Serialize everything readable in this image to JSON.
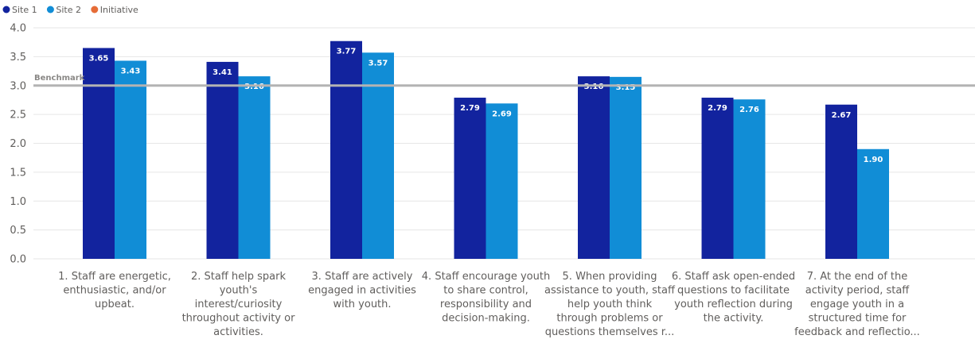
{
  "chart_data": {
    "type": "bar",
    "legend": [
      {
        "name": "Site 1",
        "color": "#12239e"
      },
      {
        "name": "Site 2",
        "color": "#118dd6"
      },
      {
        "name": "Initiative",
        "color": "#e66c37"
      }
    ],
    "legend_position": "top-left",
    "categories": [
      [
        "1. Staff are energetic,",
        "enthusiastic, and/or",
        "upbeat."
      ],
      [
        "2. Staff help spark",
        "youth's",
        "interest/curiosity",
        "throughout activity or",
        "activities."
      ],
      [
        "3. Staff are actively",
        "engaged in activities",
        "with youth."
      ],
      [
        "4. Staff encourage youth",
        "to share control,",
        "responsibility and",
        "decision-making."
      ],
      [
        "5. When providing",
        "assistance to youth, staff",
        "help youth think",
        "through problems or",
        "questions themselves r..."
      ],
      [
        "6. Staff ask open-ended",
        "questions to facilitate",
        "youth reflection during",
        "the activity."
      ],
      [
        "7. At the end of the",
        "activity period, staff",
        "engage youth in a",
        "structured time for",
        "feedback and reflectio..."
      ]
    ],
    "series": [
      {
        "name": "Site 1",
        "color": "#12239e",
        "values": [
          3.65,
          3.41,
          3.77,
          2.79,
          3.16,
          2.79,
          2.67
        ],
        "labels": [
          "3.65",
          "3.41",
          "3.77",
          "2.79",
          "3.16",
          "2.79",
          "2.67"
        ]
      },
      {
        "name": "Site 2",
        "color": "#118dd6",
        "values": [
          3.43,
          3.16,
          3.57,
          2.69,
          3.15,
          2.76,
          1.9
        ],
        "labels": [
          "3.43",
          "3.16",
          "3.57",
          "2.69",
          "3.15",
          "2.76",
          "1.90"
        ]
      }
    ],
    "benchmark": {
      "label": "Benchmark",
      "value": 3.0
    },
    "ylim": [
      0,
      4
    ],
    "yticks": [
      "0.0",
      "0.5",
      "1.0",
      "1.5",
      "2.0",
      "2.5",
      "3.0",
      "3.5",
      "4.0"
    ],
    "grid": true
  }
}
